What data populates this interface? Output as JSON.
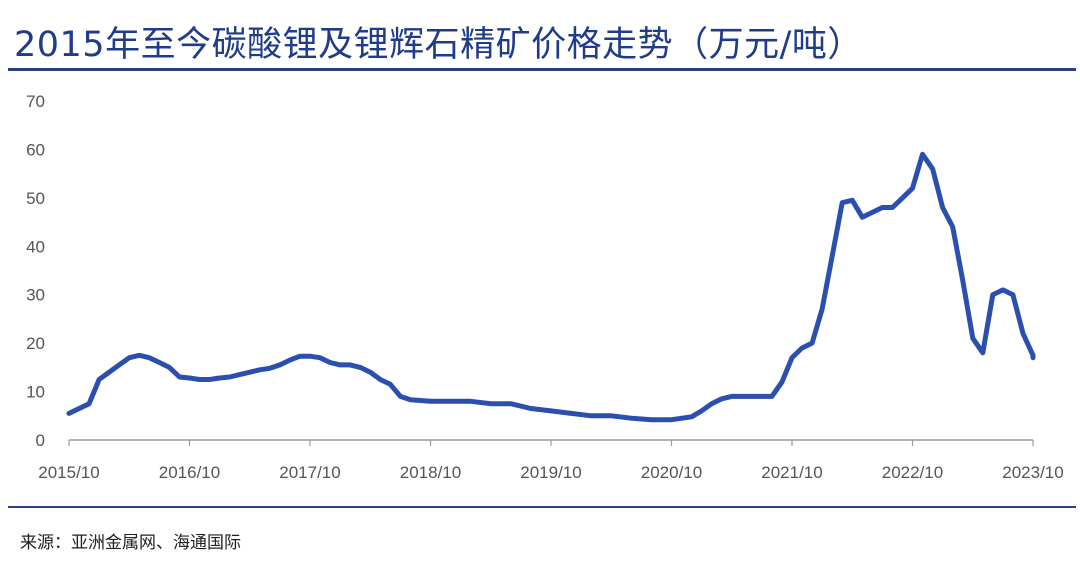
{
  "title": "2015年至今碳酸锂及锂辉石精矿价格走势（万元/吨）",
  "source": "来源：亚洲金属网、海通国际",
  "colors": {
    "title": "#1f3c8c",
    "line": "#2b4fae",
    "rule": "#2a3f86",
    "axis": "#9a9a9a"
  },
  "chart_data": {
    "type": "line",
    "title": "2015年至今碳酸锂及锂辉石精矿价格走势（万元/吨）",
    "xlabel": "",
    "ylabel": "",
    "ylim": [
      0,
      70
    ],
    "yticks": [
      0,
      10,
      20,
      30,
      40,
      50,
      60,
      70
    ],
    "xticks": [
      "2015/10",
      "2016/10",
      "2017/10",
      "2018/10",
      "2019/10",
      "2020/10",
      "2021/10",
      "2022/10",
      "2023/10"
    ],
    "grid": false,
    "legend": "none",
    "series": [
      {
        "points": [
          [
            "2015/10",
            5.5
          ],
          [
            "2015/12",
            7.5
          ],
          [
            "2016/01",
            12.5
          ],
          [
            "2016/02",
            14
          ],
          [
            "2016/03",
            15.5
          ],
          [
            "2016/04",
            17
          ],
          [
            "2016/05",
            17.5
          ],
          [
            "2016/06",
            17
          ],
          [
            "2016/07",
            16
          ],
          [
            "2016/08",
            15
          ],
          [
            "2016/09",
            13
          ],
          [
            "2016/10",
            12.8
          ],
          [
            "2016/11",
            12.5
          ],
          [
            "2016/12",
            12.5
          ],
          [
            "2017/01",
            12.8
          ],
          [
            "2017/02",
            13
          ],
          [
            "2017/03",
            13.5
          ],
          [
            "2017/04",
            14
          ],
          [
            "2017/05",
            14.5
          ],
          [
            "2017/06",
            14.8
          ],
          [
            "2017/07",
            15.5
          ],
          [
            "2017/08",
            16.5
          ],
          [
            "2017/09",
            17.3
          ],
          [
            "2017/10",
            17.3
          ],
          [
            "2017/11",
            17
          ],
          [
            "2017/12",
            16
          ],
          [
            "2018/01",
            15.5
          ],
          [
            "2018/02",
            15.5
          ],
          [
            "2018/03",
            15
          ],
          [
            "2018/04",
            14
          ],
          [
            "2018/05",
            12.5
          ],
          [
            "2018/06",
            11.5
          ],
          [
            "2018/07",
            9
          ],
          [
            "2018/08",
            8.3
          ],
          [
            "2018/10",
            8
          ],
          [
            "2018/12",
            8
          ],
          [
            "2019/02",
            8
          ],
          [
            "2019/04",
            7.5
          ],
          [
            "2019/06",
            7.5
          ],
          [
            "2019/08",
            6.5
          ],
          [
            "2019/10",
            6
          ],
          [
            "2019/12",
            5.5
          ],
          [
            "2020/02",
            5
          ],
          [
            "2020/04",
            5
          ],
          [
            "2020/06",
            4.5
          ],
          [
            "2020/08",
            4.2
          ],
          [
            "2020/10",
            4.2
          ],
          [
            "2020/12",
            4.8
          ],
          [
            "2021/01",
            6
          ],
          [
            "2021/02",
            7.5
          ],
          [
            "2021/03",
            8.5
          ],
          [
            "2021/04",
            9
          ],
          [
            "2021/06",
            9
          ],
          [
            "2021/08",
            9
          ],
          [
            "2021/09",
            12
          ],
          [
            "2021/10",
            17
          ],
          [
            "2021/11",
            19
          ],
          [
            "2021/12",
            20
          ],
          [
            "2022/01",
            27
          ],
          [
            "2022/02",
            38
          ],
          [
            "2022/03",
            49
          ],
          [
            "2022/04",
            49.5
          ],
          [
            "2022/05",
            46
          ],
          [
            "2022/06",
            47
          ],
          [
            "2022/07",
            48
          ],
          [
            "2022/08",
            48
          ],
          [
            "2022/09",
            50
          ],
          [
            "2022/10",
            52
          ],
          [
            "2022/11",
            59
          ],
          [
            "2022/12",
            56
          ],
          [
            "2023/01",
            48
          ],
          [
            "2023/02",
            44
          ],
          [
            "2023/03",
            33
          ],
          [
            "2023/04",
            21
          ],
          [
            "2023/05",
            18
          ],
          [
            "2023/06",
            30
          ],
          [
            "2023/07",
            31
          ],
          [
            "2023/08",
            30
          ],
          [
            "2023/09",
            22
          ],
          [
            "2023/10",
            17.5
          ],
          [
            "2023/10",
            17
          ]
        ]
      }
    ]
  }
}
